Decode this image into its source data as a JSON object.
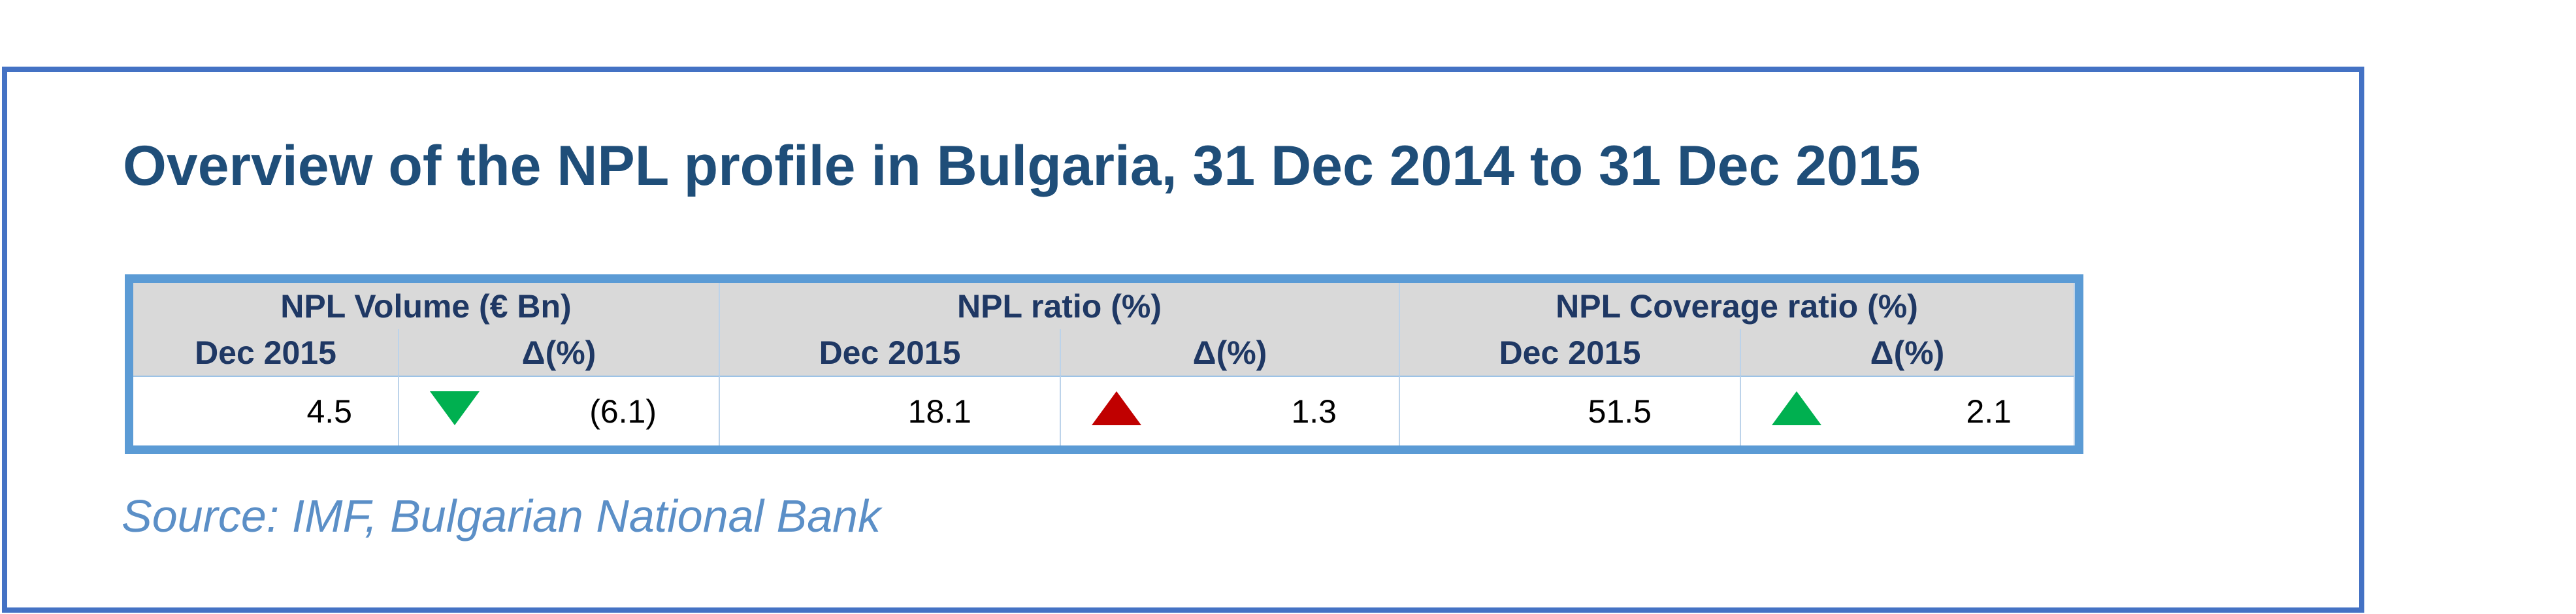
{
  "header": {
    "title": "Overview of the NPL profile in Bulgaria, 31 Dec 2014 to 31 Dec 2015"
  },
  "table": {
    "groups": [
      "NPL Volume (€ Bn)",
      "NPL ratio (%)",
      "NPL Coverage ratio (%)"
    ],
    "subheaders": [
      "Dec 2015",
      "Δ(%)",
      "Dec 2015",
      "Δ(%)",
      "Dec 2015",
      "Δ(%)"
    ],
    "rows": [
      [
        "4.5",
        "(6.1)",
        "18.1",
        "1.3",
        "51.5",
        "2.1"
      ]
    ],
    "indicators": [
      {
        "direction": "down",
        "color": "#00b050"
      },
      {
        "direction": "up",
        "color": "#c00000"
      },
      {
        "direction": "up",
        "color": "#00b050"
      }
    ]
  },
  "footer": {
    "source": "Source: IMF, Bulgarian National Bank"
  }
}
